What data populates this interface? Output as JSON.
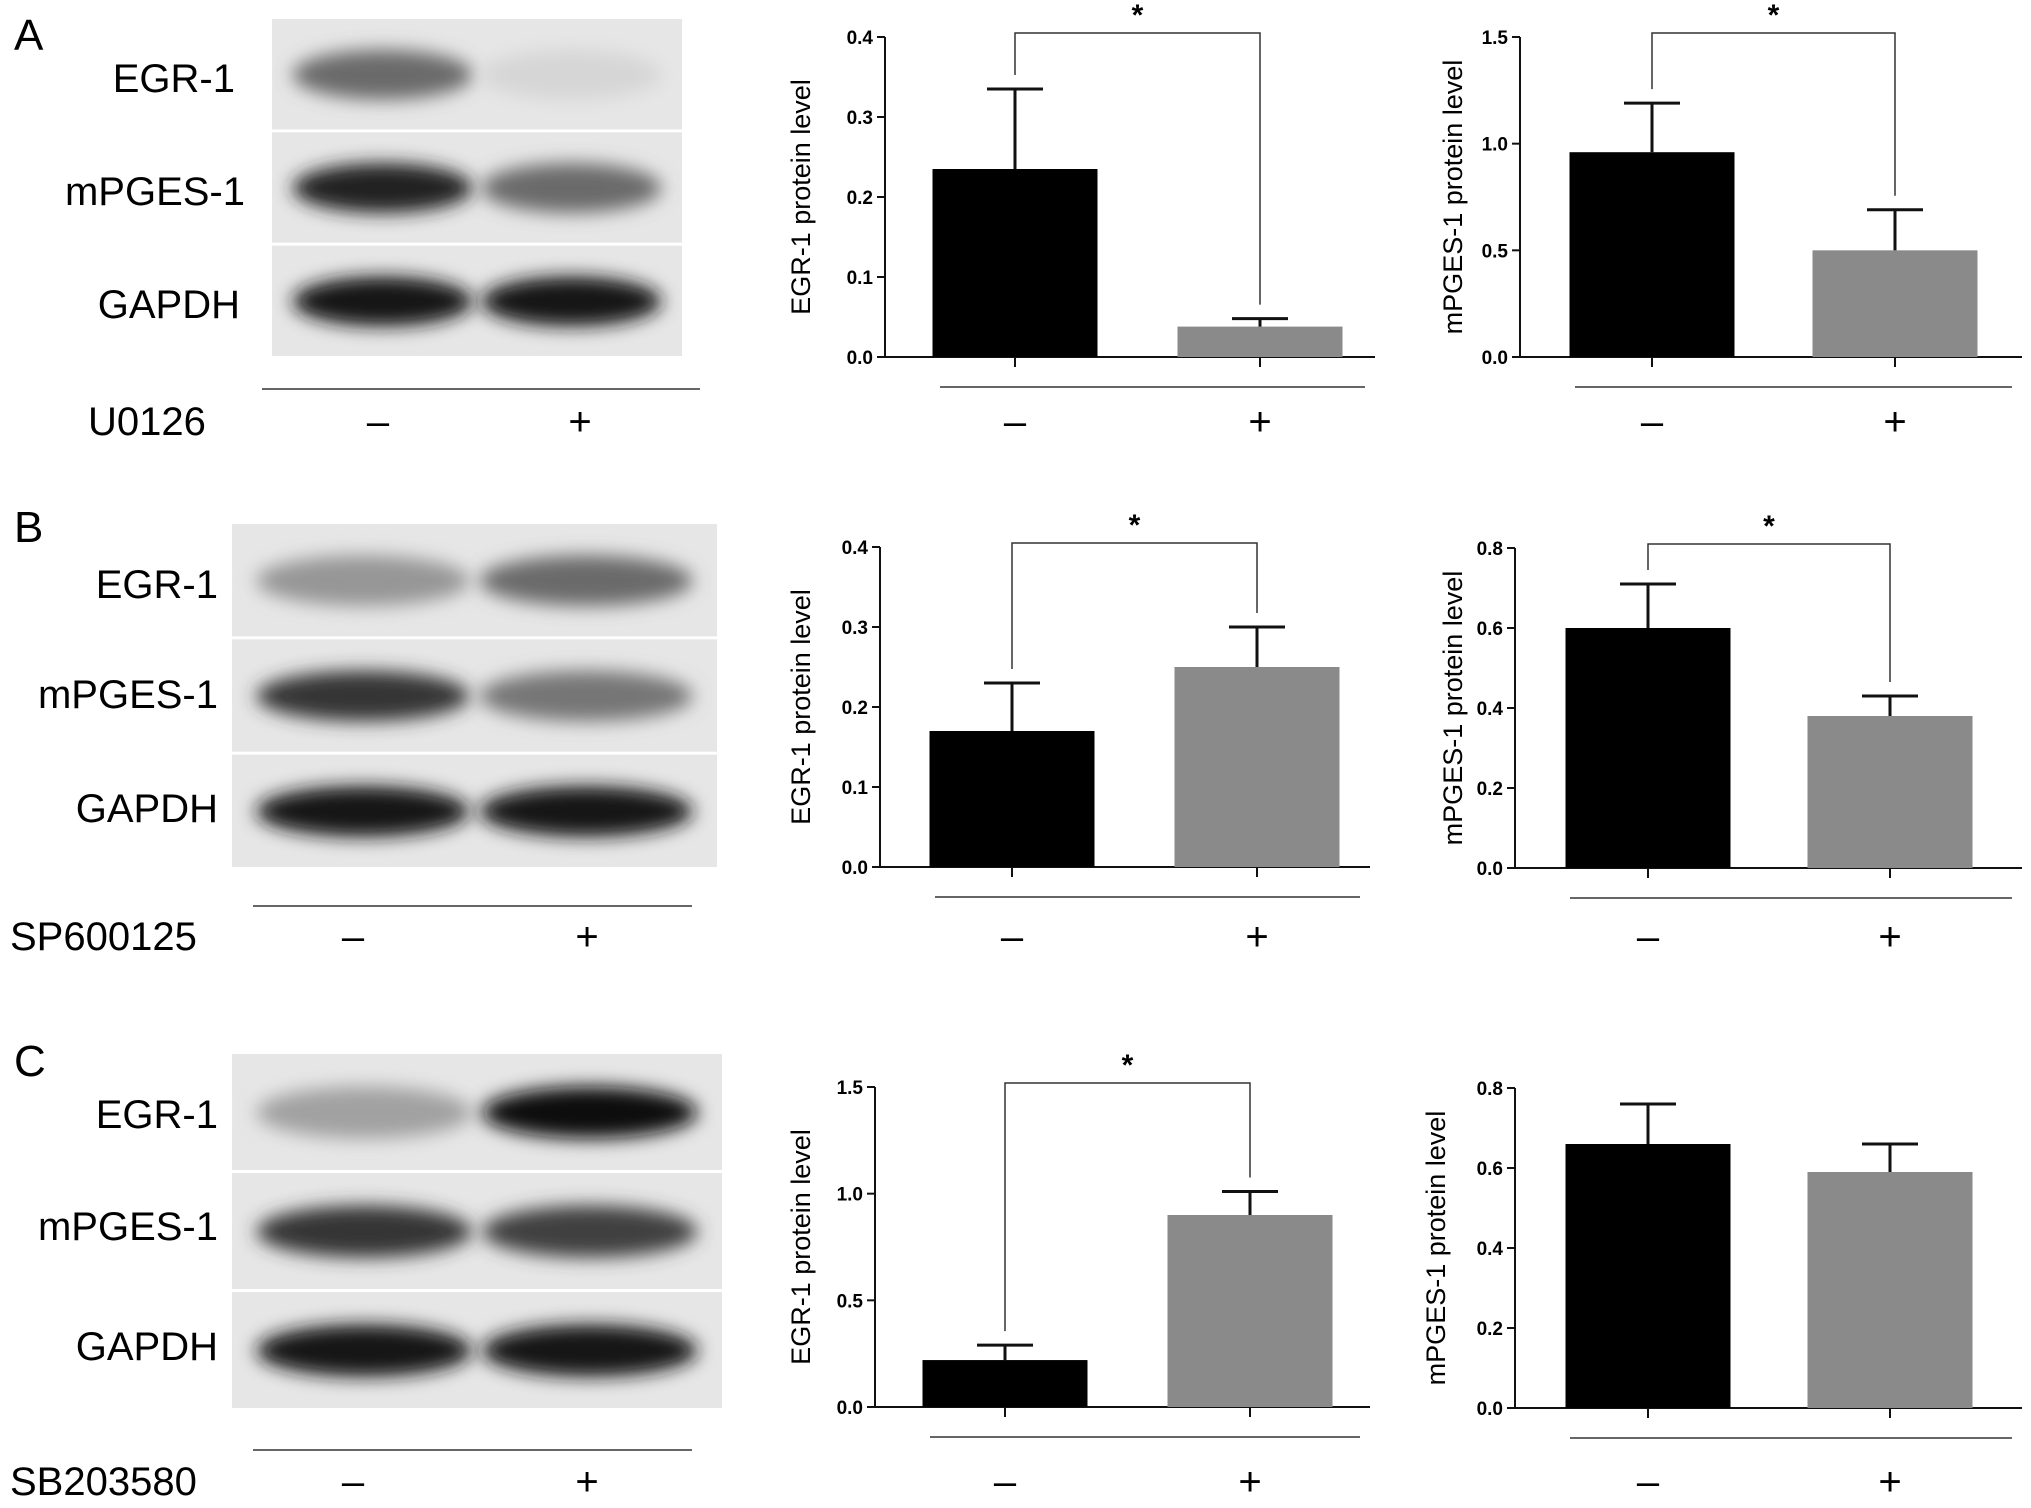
{
  "panels": [
    {
      "letter": "A",
      "treatment": "U0126",
      "lanes": [
        "–",
        "+"
      ],
      "blot_labels": [
        "EGR-1",
        "mPGES-1",
        "GAPDH"
      ],
      "blot_bands": [
        [
          0.55,
          0.05
        ],
        [
          0.9,
          0.55
        ],
        [
          0.95,
          0.93
        ]
      ]
    },
    {
      "letter": "B",
      "treatment": "SP600125",
      "lanes": [
        "–",
        "+"
      ],
      "blot_labels": [
        "EGR-1",
        "mPGES-1",
        "GAPDH"
      ],
      "blot_bands": [
        [
          0.35,
          0.55
        ],
        [
          0.8,
          0.5
        ],
        [
          0.95,
          0.95
        ]
      ]
    },
    {
      "letter": "C",
      "treatment": "SB203580",
      "lanes": [
        "–",
        "+"
      ],
      "blot_labels": [
        "EGR-1",
        "mPGES-1",
        "GAPDH"
      ],
      "blot_bands": [
        [
          0.3,
          0.97
        ],
        [
          0.8,
          0.75
        ],
        [
          0.95,
          0.95
        ]
      ]
    }
  ],
  "colors": {
    "control_bar": "#000000",
    "treated_bar": "#8a8a8a"
  },
  "chart_data": [
    {
      "type": "bar",
      "panel": "A",
      "ylabel": "EGR-1 protein level",
      "categories": [
        "–",
        "+"
      ],
      "values": [
        0.235,
        0.038
      ],
      "errors": [
        0.1,
        0.01
      ],
      "ylim": [
        0,
        0.4
      ],
      "yticks": [
        "0.0",
        "0.1",
        "0.2",
        "0.3",
        "0.4"
      ],
      "significance": "*"
    },
    {
      "type": "bar",
      "panel": "A",
      "ylabel": "mPGES-1 protein level",
      "categories": [
        "–",
        "+"
      ],
      "values": [
        0.96,
        0.5
      ],
      "errors": [
        0.23,
        0.19
      ],
      "ylim": [
        0,
        1.5
      ],
      "yticks": [
        "0.0",
        "0.5",
        "1.0",
        "1.5"
      ],
      "significance": "*"
    },
    {
      "type": "bar",
      "panel": "B",
      "ylabel": "EGR-1 protein level",
      "categories": [
        "–",
        "+"
      ],
      "values": [
        0.17,
        0.25
      ],
      "errors": [
        0.06,
        0.05
      ],
      "ylim": [
        0,
        0.4
      ],
      "yticks": [
        "0.0",
        "0.1",
        "0.2",
        "0.3",
        "0.4"
      ],
      "significance": "*"
    },
    {
      "type": "bar",
      "panel": "B",
      "ylabel": "mPGES-1 protein level",
      "categories": [
        "–",
        "+"
      ],
      "values": [
        0.6,
        0.38
      ],
      "errors": [
        0.11,
        0.05
      ],
      "ylim": [
        0,
        0.8
      ],
      "yticks": [
        "0.0",
        "0.2",
        "0.4",
        "0.6",
        "0.8"
      ],
      "significance": "*"
    },
    {
      "type": "bar",
      "panel": "C",
      "ylabel": "EGR-1 protein level",
      "categories": [
        "–",
        "+"
      ],
      "values": [
        0.22,
        0.9
      ],
      "errors": [
        0.07,
        0.11
      ],
      "ylim": [
        0,
        1.5
      ],
      "yticks": [
        "0.0",
        "0.5",
        "1.0",
        "1.5"
      ],
      "significance": "*"
    },
    {
      "type": "bar",
      "panel": "C",
      "ylabel": "mPGES-1 protein level",
      "categories": [
        "–",
        "+"
      ],
      "values": [
        0.66,
        0.59
      ],
      "errors": [
        0.1,
        0.07
      ],
      "ylim": [
        0,
        0.8
      ],
      "yticks": [
        "0.0",
        "0.2",
        "0.4",
        "0.6",
        "0.8"
      ],
      "significance": ""
    }
  ]
}
